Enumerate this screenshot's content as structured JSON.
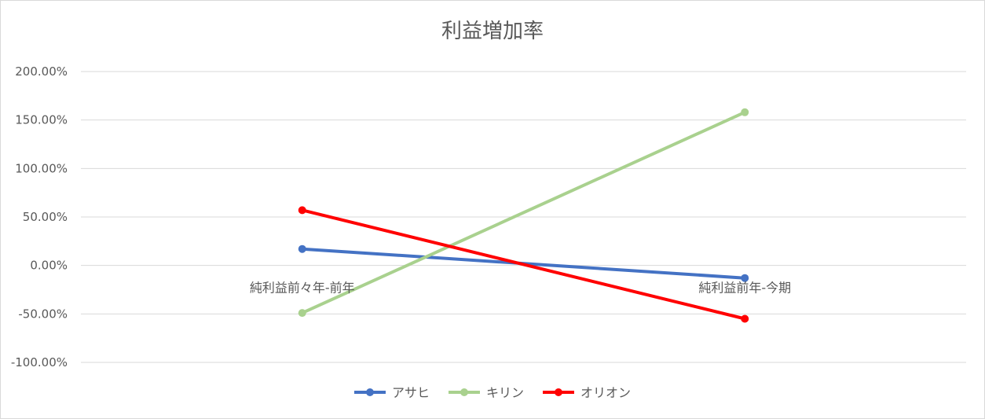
{
  "chart_data": {
    "type": "line",
    "title": "利益増加率",
    "xlabel": "",
    "ylabel": "",
    "categories": [
      "純利益前々年-前年",
      "純利益前年-今期"
    ],
    "ylim": [
      -1.0,
      2.0
    ],
    "yticks": [
      2.0,
      1.5,
      1.0,
      0.5,
      0.0,
      -0.5,
      -1.0
    ],
    "ytick_labels": [
      "200.00%",
      "150.00%",
      "100.00%",
      "50.00%",
      "0.00%",
      "-50.00%",
      "-100.00%"
    ],
    "grid": true,
    "legend_position": "bottom",
    "series": [
      {
        "name": "アサヒ",
        "color": "#4472c4",
        "values": [
          0.17,
          -0.13
        ]
      },
      {
        "name": "キリン",
        "color": "#a9d18e",
        "values": [
          -0.49,
          1.58
        ]
      },
      {
        "name": "オリオン",
        "color": "#ff0000",
        "values": [
          0.57,
          -0.55
        ]
      }
    ]
  }
}
